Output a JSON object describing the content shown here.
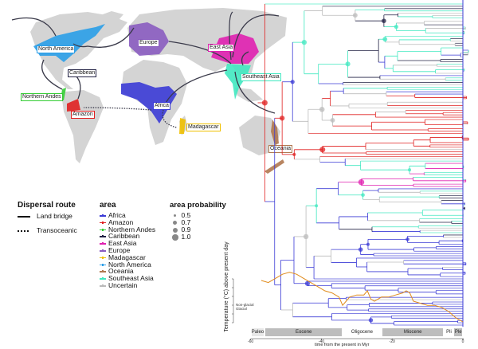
{
  "map": {
    "regions": [
      {
        "label": "North America",
        "color": "#2a9ee8"
      },
      {
        "label": "Europe",
        "color": "#8a5cc0"
      },
      {
        "label": "East Asia",
        "color": "#e020b0"
      },
      {
        "label": "Southeast Asia",
        "color": "#40e8c0"
      },
      {
        "label": "Caribbean",
        "color": "#222244"
      },
      {
        "label": "Northern Andes",
        "color": "#33cc33"
      },
      {
        "label": "Amazon",
        "color": "#e02020"
      },
      {
        "label": "Africa",
        "color": "#3b3bd6"
      },
      {
        "label": "Madagascar",
        "color": "#f0c000"
      },
      {
        "label": "Oceania",
        "color": "#b07850"
      }
    ]
  },
  "legend": {
    "dispersal_title": "Dispersal route",
    "land_bridge": "Land bridge",
    "transoceanic": "Transoceanic",
    "area_title": "area",
    "areas": [
      {
        "label": "Africa",
        "color": "#3b3bd6"
      },
      {
        "label": "Amazon",
        "color": "#e02020"
      },
      {
        "label": "Northern Andes",
        "color": "#33cc33"
      },
      {
        "label": "Caribbean",
        "color": "#222244"
      },
      {
        "label": "East Asia",
        "color": "#e020b0"
      },
      {
        "label": "Europe",
        "color": "#8a5cc0"
      },
      {
        "label": "Madagascar",
        "color": "#f0c000"
      },
      {
        "label": "North America",
        "color": "#2a9ee8"
      },
      {
        "label": "Oceania",
        "color": "#b07850"
      },
      {
        "label": "Southeast Asia",
        "color": "#40e8c0"
      },
      {
        "label": "Uncertain",
        "color": "#bbbbbb"
      }
    ],
    "prob_title": "area probability",
    "probs": [
      "0.5",
      "0.7",
      "0.9",
      "1.0"
    ]
  },
  "tree": {
    "xlabel": "time from the present in Myr",
    "xticks": [
      "-60",
      "-40",
      "-20",
      "0"
    ],
    "ylabel": "Temperature (°C) above present day",
    "non_glacial": "Non-glacial",
    "glacial": "Glacial",
    "epochs": [
      {
        "label": "Paleo",
        "start": -60,
        "end": -56,
        "fill": "#e8e8e8"
      },
      {
        "label": "Eocene",
        "start": -56,
        "end": -34,
        "fill": "#bdbdbd"
      },
      {
        "label": "Oligocene",
        "start": -34,
        "end": -23,
        "fill": "#ffffff"
      },
      {
        "label": "Miocene",
        "start": -23,
        "end": -5.3,
        "fill": "#bdbdbd"
      },
      {
        "label": "Pli",
        "start": -5.3,
        "end": -2.6,
        "fill": "#ffffff"
      },
      {
        "label": "Ple",
        "start": -2.6,
        "end": 0,
        "fill": "#bdbdbd"
      }
    ],
    "temperature_curve": [
      [
        -57,
        10
      ],
      [
        -55,
        9
      ],
      [
        -53,
        11
      ],
      [
        -51,
        13
      ],
      [
        -49,
        14
      ],
      [
        -47,
        13
      ],
      [
        -45,
        11
      ],
      [
        -43,
        9
      ],
      [
        -41,
        7
      ],
      [
        -39,
        5
      ],
      [
        -37,
        4
      ],
      [
        -35,
        2
      ],
      [
        -34,
        -2
      ],
      [
        -33,
        0
      ],
      [
        -32,
        2
      ],
      [
        -30,
        3
      ],
      [
        -28,
        3
      ],
      [
        -27,
        5
      ],
      [
        -26,
        1
      ],
      [
        -25,
        0
      ],
      [
        -23,
        2
      ],
      [
        -21,
        2
      ],
      [
        -19,
        3
      ],
      [
        -17,
        4
      ],
      [
        -16,
        5
      ],
      [
        -15,
        4
      ],
      [
        -14,
        0
      ],
      [
        -12,
        -1
      ],
      [
        -10,
        -2
      ],
      [
        -8,
        -2
      ],
      [
        -6,
        -3
      ],
      [
        -4,
        -5
      ],
      [
        -2,
        -8
      ],
      [
        0,
        -10
      ]
    ]
  }
}
